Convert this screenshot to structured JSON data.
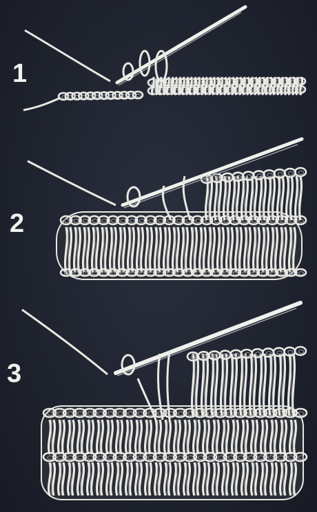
{
  "steps": [
    {
      "number": "1"
    },
    {
      "number": "2"
    },
    {
      "number": "3"
    }
  ],
  "colors": {
    "background": "#1f2330",
    "yarn": "#e9e9e3",
    "yarn_shadow": "#8a8c90",
    "hook": "#f0f0ec",
    "numerals": "#f2f2ee"
  }
}
